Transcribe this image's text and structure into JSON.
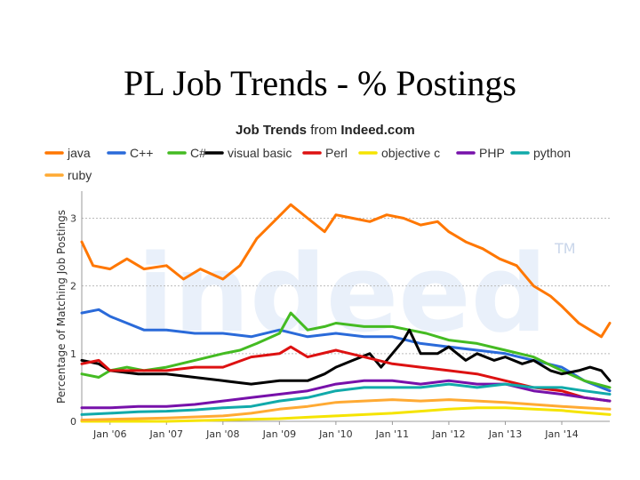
{
  "slide": {
    "title": "PL Job Trends - % Postings"
  },
  "chart_data": {
    "type": "line",
    "title_bold": "Job Trends",
    "title_mid": " from ",
    "title_site": "Indeed.com",
    "ylabel": "Percentage of Matching Job Postings",
    "ylim": [
      0,
      3.4
    ],
    "yticks": [
      "0",
      "1",
      "2",
      "3"
    ],
    "ytick_values": [
      0,
      1,
      2,
      3
    ],
    "xlim": [
      2005.5,
      2014.85
    ],
    "xticks": [
      "Jan '06",
      "Jan '07",
      "Jan '08",
      "Jan '09",
      "Jan '10",
      "Jan '11",
      "Jan '12",
      "Jan '13",
      "Jan '14"
    ],
    "xtick_values": [
      2006,
      2007,
      2008,
      2009,
      2010,
      2011,
      2012,
      2013,
      2014
    ],
    "grid": true,
    "legend_position": "top",
    "watermark": "indeed",
    "watermark_tm": "TM",
    "series": [
      {
        "name": "java",
        "color": "#ff7700",
        "x": [
          2005.5,
          2005.7,
          2006.0,
          2006.3,
          2006.6,
          2007.0,
          2007.3,
          2007.6,
          2008.0,
          2008.3,
          2008.6,
          2008.9,
          2009.2,
          2009.5,
          2009.8,
          2010.0,
          2010.3,
          2010.6,
          2010.9,
          2011.2,
          2011.5,
          2011.8,
          2012.0,
          2012.3,
          2012.6,
          2012.9,
          2013.2,
          2013.5,
          2013.8,
          2014.0,
          2014.3,
          2014.5,
          2014.7,
          2014.85
        ],
        "values": [
          2.65,
          2.3,
          2.25,
          2.4,
          2.25,
          2.3,
          2.1,
          2.25,
          2.1,
          2.3,
          2.7,
          2.95,
          3.2,
          3.0,
          2.8,
          3.05,
          3.0,
          2.95,
          3.05,
          3.0,
          2.9,
          2.95,
          2.8,
          2.65,
          2.55,
          2.4,
          2.3,
          2.0,
          1.85,
          1.7,
          1.45,
          1.35,
          1.25,
          1.45
        ]
      },
      {
        "name": "C++",
        "color": "#2a6ad9",
        "x": [
          2005.5,
          2005.8,
          2006.0,
          2006.3,
          2006.6,
          2007.0,
          2007.5,
          2008.0,
          2008.5,
          2009.0,
          2009.5,
          2010.0,
          2010.5,
          2011.0,
          2011.5,
          2012.0,
          2012.5,
          2013.0,
          2013.5,
          2014.0,
          2014.4,
          2014.85
        ],
        "values": [
          1.6,
          1.65,
          1.55,
          1.45,
          1.35,
          1.35,
          1.3,
          1.3,
          1.25,
          1.35,
          1.25,
          1.3,
          1.25,
          1.25,
          1.15,
          1.1,
          1.05,
          1.0,
          0.9,
          0.8,
          0.6,
          0.45
        ]
      },
      {
        "name": "C#",
        "color": "#44bb22",
        "x": [
          2005.5,
          2005.8,
          2006.0,
          2006.3,
          2006.6,
          2007.0,
          2007.5,
          2008.0,
          2008.3,
          2008.6,
          2009.0,
          2009.2,
          2009.5,
          2009.8,
          2010.0,
          2010.5,
          2011.0,
          2011.3,
          2011.6,
          2012.0,
          2012.5,
          2013.0,
          2013.5,
          2014.0,
          2014.4,
          2014.85
        ],
        "values": [
          0.7,
          0.65,
          0.75,
          0.8,
          0.75,
          0.8,
          0.9,
          1.0,
          1.05,
          1.15,
          1.3,
          1.6,
          1.35,
          1.4,
          1.45,
          1.4,
          1.4,
          1.35,
          1.3,
          1.2,
          1.15,
          1.05,
          0.95,
          0.75,
          0.6,
          0.5
        ]
      },
      {
        "name": "visual basic",
        "color": "#000000",
        "x": [
          2005.5,
          2005.8,
          2006.0,
          2006.5,
          2007.0,
          2007.5,
          2008.0,
          2008.5,
          2009.0,
          2009.5,
          2009.8,
          2010.0,
          2010.3,
          2010.6,
          2010.8,
          2011.0,
          2011.2,
          2011.3,
          2011.5,
          2011.8,
          2012.0,
          2012.3,
          2012.5,
          2012.8,
          2013.0,
          2013.3,
          2013.5,
          2013.8,
          2014.0,
          2014.3,
          2014.5,
          2014.7,
          2014.85
        ],
        "values": [
          0.9,
          0.85,
          0.75,
          0.7,
          0.7,
          0.65,
          0.6,
          0.55,
          0.6,
          0.6,
          0.7,
          0.8,
          0.9,
          1.0,
          0.8,
          1.0,
          1.2,
          1.35,
          1.0,
          1.0,
          1.1,
          0.9,
          1.0,
          0.9,
          0.95,
          0.85,
          0.9,
          0.75,
          0.7,
          0.75,
          0.8,
          0.75,
          0.6
        ]
      },
      {
        "name": "Perl",
        "color": "#dd1111",
        "x": [
          2005.5,
          2005.8,
          2006.0,
          2006.5,
          2007.0,
          2007.5,
          2008.0,
          2008.5,
          2009.0,
          2009.2,
          2009.5,
          2010.0,
          2010.5,
          2011.0,
          2011.5,
          2012.0,
          2012.5,
          2013.0,
          2013.5,
          2014.0,
          2014.4,
          2014.85
        ],
        "values": [
          0.85,
          0.9,
          0.75,
          0.75,
          0.75,
          0.8,
          0.8,
          0.95,
          1.0,
          1.1,
          0.95,
          1.05,
          0.95,
          0.85,
          0.8,
          0.75,
          0.7,
          0.6,
          0.5,
          0.45,
          0.35,
          0.3
        ]
      },
      {
        "name": "objective c",
        "color": "#f5e400",
        "x": [
          2005.5,
          2006.0,
          2007.0,
          2008.0,
          2009.0,
          2009.5,
          2010.0,
          2010.5,
          2011.0,
          2011.5,
          2012.0,
          2012.5,
          2013.0,
          2013.5,
          2014.0,
          2014.4,
          2014.85
        ],
        "values": [
          0.0,
          0.0,
          0.0,
          0.02,
          0.04,
          0.06,
          0.08,
          0.1,
          0.12,
          0.15,
          0.18,
          0.2,
          0.2,
          0.18,
          0.16,
          0.13,
          0.1
        ]
      },
      {
        "name": "PHP",
        "color": "#7711aa",
        "x": [
          2005.5,
          2006.0,
          2006.5,
          2007.0,
          2007.5,
          2008.0,
          2008.5,
          2009.0,
          2009.5,
          2010.0,
          2010.5,
          2011.0,
          2011.5,
          2012.0,
          2012.5,
          2013.0,
          2013.5,
          2014.0,
          2014.4,
          2014.85
        ],
        "values": [
          0.2,
          0.2,
          0.22,
          0.22,
          0.25,
          0.3,
          0.35,
          0.4,
          0.45,
          0.55,
          0.6,
          0.6,
          0.55,
          0.6,
          0.55,
          0.55,
          0.45,
          0.4,
          0.35,
          0.3
        ]
      },
      {
        "name": "python",
        "color": "#11aaaa",
        "x": [
          2005.5,
          2006.0,
          2006.5,
          2007.0,
          2007.5,
          2008.0,
          2008.5,
          2009.0,
          2009.5,
          2010.0,
          2010.5,
          2011.0,
          2011.5,
          2012.0,
          2012.5,
          2013.0,
          2013.5,
          2014.0,
          2014.4,
          2014.85
        ],
        "values": [
          0.1,
          0.12,
          0.14,
          0.15,
          0.17,
          0.2,
          0.22,
          0.3,
          0.35,
          0.45,
          0.5,
          0.5,
          0.5,
          0.55,
          0.5,
          0.55,
          0.5,
          0.5,
          0.45,
          0.4
        ]
      },
      {
        "name": "ruby",
        "color": "#ffaa33",
        "x": [
          2005.5,
          2006.0,
          2007.0,
          2008.0,
          2008.5,
          2009.0,
          2009.5,
          2010.0,
          2010.5,
          2011.0,
          2011.5,
          2012.0,
          2012.5,
          2013.0,
          2013.5,
          2014.0,
          2014.4,
          2014.85
        ],
        "values": [
          0.02,
          0.03,
          0.05,
          0.08,
          0.12,
          0.18,
          0.22,
          0.28,
          0.3,
          0.32,
          0.3,
          0.32,
          0.3,
          0.28,
          0.25,
          0.22,
          0.2,
          0.18
        ]
      }
    ]
  }
}
